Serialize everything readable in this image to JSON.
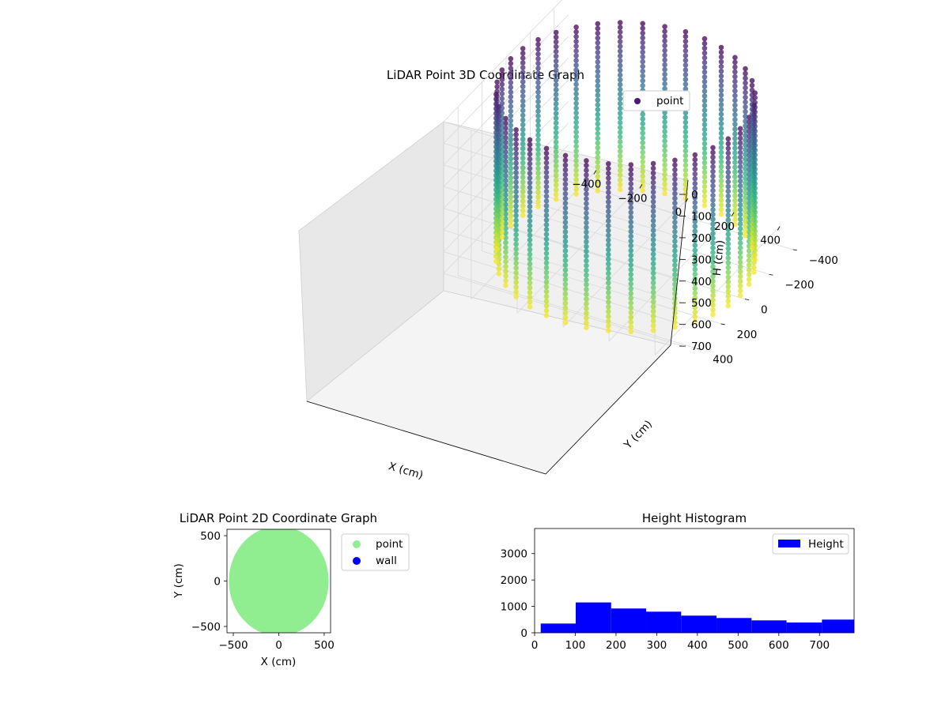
{
  "figure_background": "#ffffff",
  "chart_data": [
    {
      "type": "scatter3d",
      "title": "LiDAR Point 3D Coordinate Graph",
      "xlabel": "X (cm)",
      "ylabel": "Y (cm)",
      "zlabel": "H (cm)",
      "x_ticks": [
        "−400",
        "−200",
        "0",
        "200",
        "400"
      ],
      "y_ticks": [
        "−400",
        "−200",
        "0",
        "200",
        "400"
      ],
      "z_ticks": [
        "0",
        "100",
        "200",
        "300",
        "400",
        "500",
        "600",
        "700"
      ],
      "xlim": [
        -520,
        520
      ],
      "ylim": [
        -520,
        520
      ],
      "zlim": [
        0,
        780
      ],
      "z_inverted": true,
      "legend": {
        "label": "point",
        "color": "#46197a",
        "placement": "upper right"
      },
      "colormap": "viridis",
      "point_cloud": {
        "shape": "cylindrical wall",
        "radius_cm": 500,
        "height_range_cm": [
          0,
          780
        ],
        "vertical_lines": 36
      }
    },
    {
      "type": "scatter",
      "title": "LiDAR Point 2D Coordinate Graph",
      "xlabel": "X (cm)",
      "ylabel": "Y (cm)",
      "x_ticks": [
        "−500",
        "0",
        "500"
      ],
      "y_ticks": [
        "−500",
        "0",
        "500"
      ],
      "xlim": [
        -570,
        570
      ],
      "ylim": [
        -570,
        570
      ],
      "legend": [
        {
          "label": "point",
          "color": "#90ee90"
        },
        {
          "label": "wall",
          "color": "#0000ff"
        }
      ],
      "point_cloud": {
        "shape": "filled disk",
        "radius_cm": 560,
        "color": "#90ee90"
      }
    },
    {
      "type": "bar",
      "subtype": "histogram",
      "title": "Height Histogram",
      "xlabel": "",
      "ylabel": "",
      "bins": [
        {
          "x0": 15,
          "x1": 101,
          "count": 350
        },
        {
          "x0": 101,
          "x1": 188,
          "count": 1150
        },
        {
          "x0": 188,
          "x1": 274,
          "count": 920
        },
        {
          "x0": 274,
          "x1": 360,
          "count": 800
        },
        {
          "x0": 360,
          "x1": 447,
          "count": 650
        },
        {
          "x0": 447,
          "x1": 533,
          "count": 560
        },
        {
          "x0": 533,
          "x1": 619,
          "count": 470
        },
        {
          "x0": 619,
          "x1": 706,
          "count": 390
        },
        {
          "x0": 706,
          "x1": 792,
          "count": 500
        }
      ],
      "x_ticks": [
        "0",
        "100",
        "200",
        "300",
        "400",
        "500",
        "600",
        "700"
      ],
      "y_ticks": [
        "0",
        "1000",
        "2000",
        "3000"
      ],
      "xlim": [
        0,
        785
      ],
      "ylim": [
        0,
        3950
      ],
      "legend": {
        "label": "Height",
        "color": "#0000ff",
        "placement": "upper right"
      },
      "bar_color": "#0000ff"
    }
  ]
}
